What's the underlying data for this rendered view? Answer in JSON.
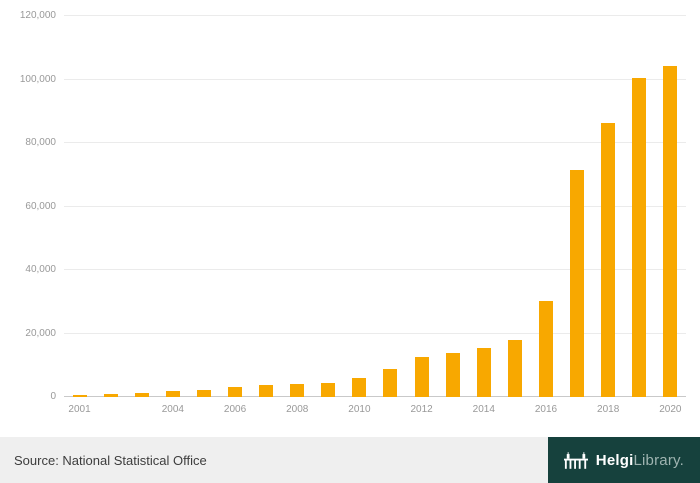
{
  "chart_data": {
    "type": "bar",
    "title": "",
    "xlabel": "",
    "ylabel": "",
    "categories": [
      "2001",
      "2002",
      "2003",
      "2004",
      "2005",
      "2006",
      "2007",
      "2008",
      "2009",
      "2010",
      "2011",
      "2012",
      "2013",
      "2014",
      "2015",
      "2016",
      "2017",
      "2018",
      "2019",
      "2020"
    ],
    "values": [
      500,
      1100,
      1400,
      1800,
      2300,
      3100,
      3700,
      4100,
      4500,
      5900,
      8800,
      12700,
      13900,
      15400,
      17900,
      30200,
      71500,
      86200,
      100400,
      104300
    ],
    "ylim": [
      0,
      120000
    ],
    "ytick_step": 20000,
    "x_labels_shown": [
      "2001",
      "2004",
      "2006",
      "2008",
      "2010",
      "2012",
      "2014",
      "2016",
      "2018",
      "2020"
    ],
    "grid": true,
    "legend": false,
    "bar_color": "#F8A800"
  },
  "colors": {
    "bar": "#F8A800",
    "axis_text": "#999999",
    "footer_bg": "#EFEFEF",
    "logo_bg": "#16413D"
  },
  "footer": {
    "source_label": "Source: National Statistical Office",
    "logo": {
      "brand_bold": "Helgi",
      "brand_light": "Library."
    }
  }
}
